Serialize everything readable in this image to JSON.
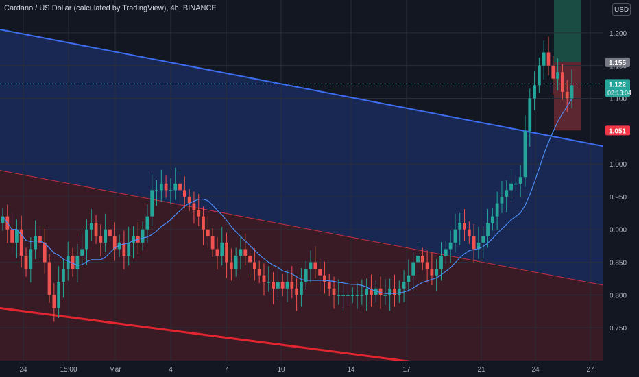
{
  "header": {
    "title": "Cardano / US Dollar (calculated by TradingView), 4h, BINANCE",
    "currency": "USD"
  },
  "chart_data": {
    "type": "candlestick",
    "title": "Cardano / US Dollar (calculated by TradingView), 4h, BINANCE",
    "y_axis": {
      "ticks": [
        "1.200",
        "1.150",
        "1.100",
        "1.000",
        "0.950",
        "0.900",
        "0.850",
        "0.800",
        "0.750"
      ],
      "range": [
        0.7,
        1.25
      ],
      "side": "right"
    },
    "x_axis": {
      "ticks": [
        "24",
        "15:00",
        "Mar",
        "4",
        "7",
        "10",
        "14",
        "17",
        "21",
        "24",
        "27"
      ]
    },
    "price_labels": [
      {
        "value": "1.155",
        "kind": "gray"
      },
      {
        "value": "1.122",
        "kind": "green",
        "sub": "02:13:04"
      },
      {
        "value": "1.051",
        "kind": "red"
      }
    ],
    "lines": {
      "blue_trendline": {
        "start": 1.205,
        "end": 1.027
      },
      "red_channel_upper": {
        "start": 0.99,
        "end": 0.815
      },
      "red_channel_lower": {
        "start": 0.78,
        "end": 0.66
      },
      "current_price": 1.122
    },
    "close_series": [
      0.92,
      0.9,
      0.88,
      0.9,
      0.86,
      0.84,
      0.87,
      0.89,
      0.88,
      0.85,
      0.8,
      0.78,
      0.82,
      0.84,
      0.86,
      0.84,
      0.86,
      0.87,
      0.9,
      0.91,
      0.89,
      0.88,
      0.9,
      0.89,
      0.87,
      0.88,
      0.86,
      0.88,
      0.89,
      0.88,
      0.9,
      0.92,
      0.96,
      0.96,
      0.97,
      0.96,
      0.96,
      0.97,
      0.96,
      0.95,
      0.94,
      0.93,
      0.92,
      0.9,
      0.89,
      0.87,
      0.86,
      0.88,
      0.85,
      0.84,
      0.86,
      0.87,
      0.86,
      0.85,
      0.84,
      0.83,
      0.82,
      0.82,
      0.81,
      0.82,
      0.81,
      0.82,
      0.81,
      0.8,
      0.82,
      0.84,
      0.85,
      0.84,
      0.83,
      0.82,
      0.81,
      0.8,
      0.8,
      0.8,
      0.8,
      0.8,
      0.8,
      0.8,
      0.81,
      0.8,
      0.81,
      0.8,
      0.8,
      0.81,
      0.8,
      0.81,
      0.82,
      0.83,
      0.85,
      0.86,
      0.85,
      0.84,
      0.83,
      0.84,
      0.86,
      0.87,
      0.88,
      0.9,
      0.91,
      0.9,
      0.89,
      0.87,
      0.88,
      0.89,
      0.91,
      0.92,
      0.94,
      0.95,
      0.96,
      0.97,
      0.97,
      0.98,
      1.05,
      1.1,
      1.12,
      1.15,
      1.17,
      1.15,
      1.13,
      1.14,
      1.11,
      1.1,
      1.12
    ]
  }
}
